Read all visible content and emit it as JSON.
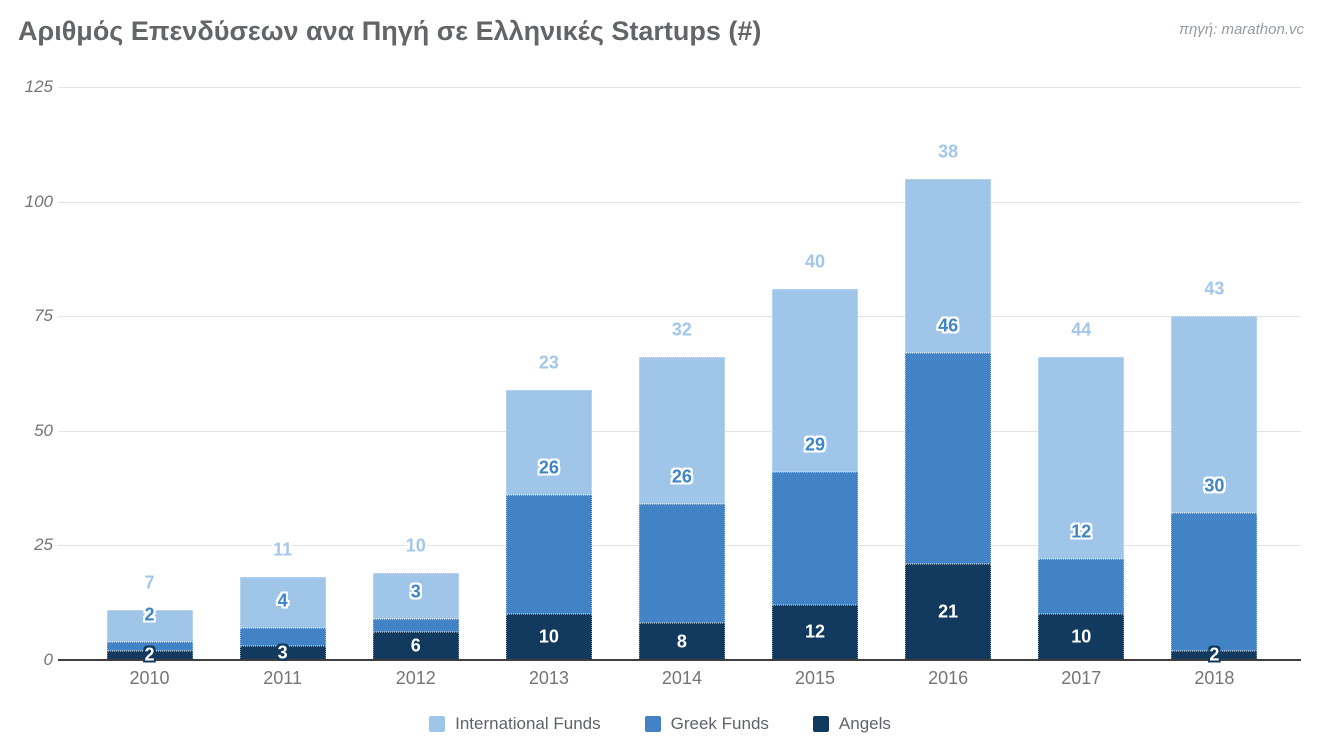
{
  "header": {
    "title": "Αριθμός Επενδύσεων ανα Πηγή σε Ελληνικές Startups (#)",
    "source": "πηγή: marathon.vc"
  },
  "legend": {
    "items": [
      {
        "label": "International Funds",
        "color": "#9fc5e8"
      },
      {
        "label": "Greek Funds",
        "color": "#4183c5"
      },
      {
        "label": "Angels",
        "color": "#123a5e"
      }
    ]
  },
  "chart_data": {
    "type": "bar",
    "stacked": true,
    "title": "Αριθμός Επενδύσεων ανα Πηγή σε Ελληνικές Startups (#)",
    "xlabel": "",
    "ylabel": "",
    "categories": [
      "2010",
      "2011",
      "2012",
      "2013",
      "2014",
      "2015",
      "2016",
      "2017",
      "2018"
    ],
    "series": [
      {
        "name": "Angels",
        "color": "#123a5e",
        "label_color": "#ffffff",
        "label_halo": "#123a5e",
        "values": [
          2,
          3,
          6,
          10,
          8,
          12,
          21,
          10,
          2
        ]
      },
      {
        "name": "Greek Funds",
        "color": "#4183c5",
        "label_color": "#3d85c6",
        "label_halo": "#ffffff",
        "values": [
          2,
          4,
          3,
          26,
          26,
          29,
          46,
          12,
          30
        ]
      },
      {
        "name": "International Funds",
        "color": "#9fc5e8",
        "label_color": "#a3c6e9",
        "label_halo": "#ffffff",
        "values": [
          7,
          11,
          10,
          23,
          32,
          40,
          38,
          44,
          43
        ]
      }
    ],
    "y_ticks": [
      0,
      25,
      50,
      75,
      100,
      125
    ],
    "ylim": [
      0,
      125
    ],
    "grid": true,
    "legend_position": "bottom"
  },
  "colors": {
    "background": "#ffffff",
    "title_text": "#636669",
    "source_text": "#949ba4",
    "axis_text": "#757575",
    "legend_text": "#5f6368",
    "gridline": "#e3e3e3",
    "axis_line": "#3f3f3f"
  }
}
